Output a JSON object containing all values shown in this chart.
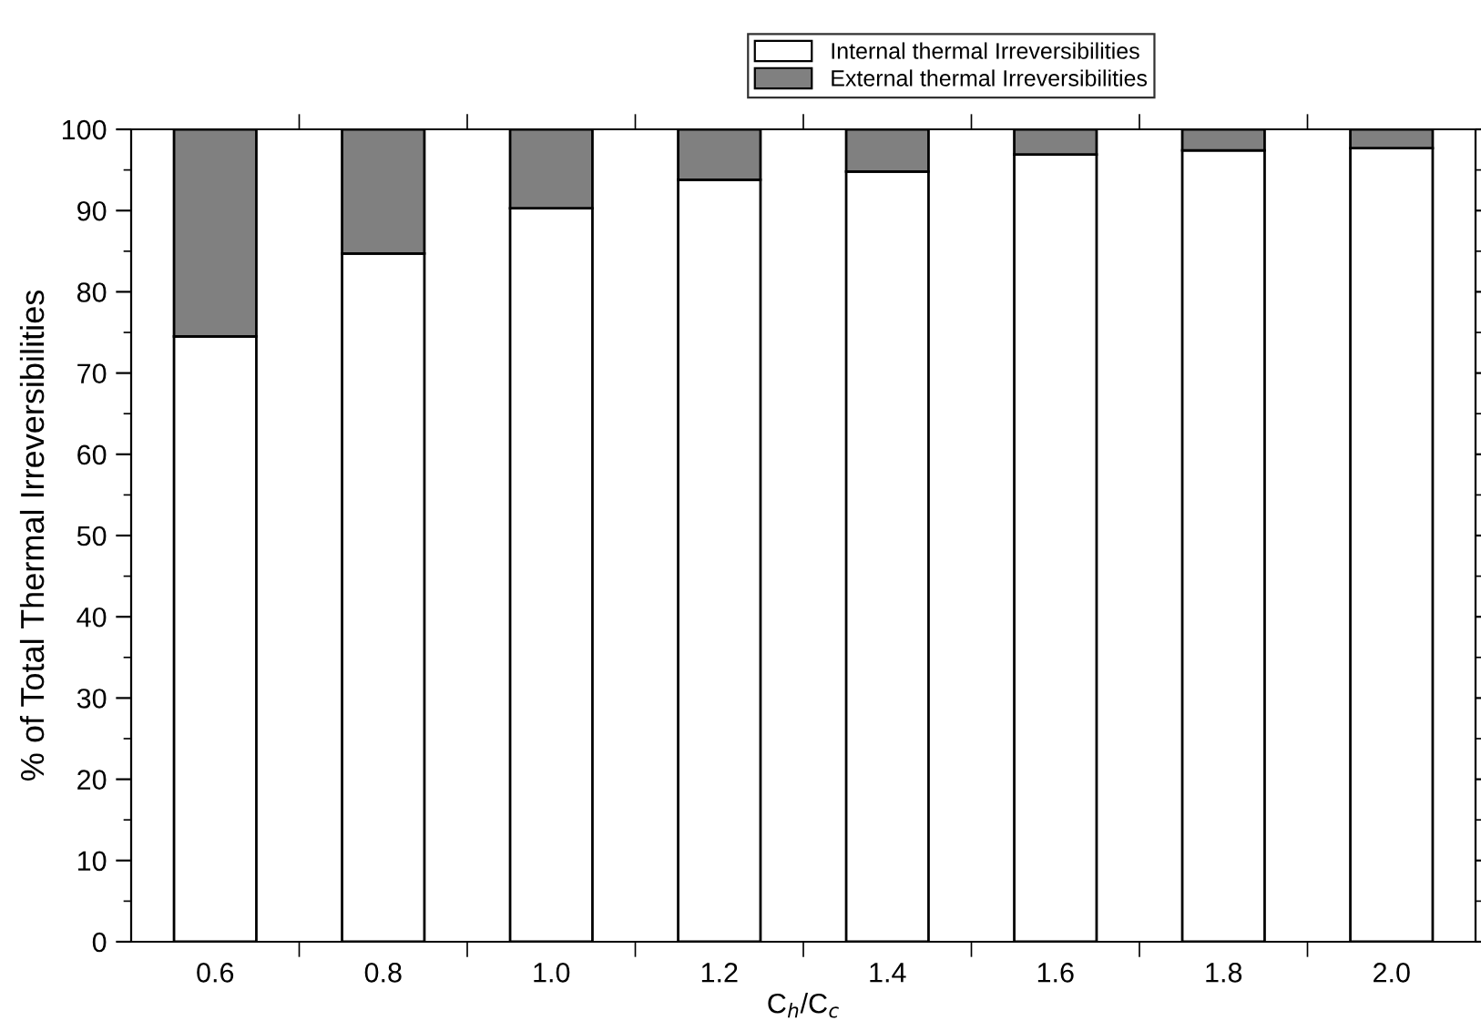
{
  "chart_data": {
    "type": "bar",
    "stacked": true,
    "xlabel": "C$_{h}$/C$_{c}$",
    "ylabel": "% of Total Thermal Irreversibilities",
    "categories": [
      "0.6",
      "0.8",
      "1.0",
      "1.2",
      "1.4",
      "1.6",
      "1.8",
      "2.0"
    ],
    "series": [
      {
        "name": "Internal thermal Irreversibilities",
        "color": "#ffffff",
        "values": [
          74.5,
          84.7,
          90.3,
          93.8,
          94.8,
          96.9,
          97.4,
          97.7
        ]
      },
      {
        "name": "External thermal Irreversibilities",
        "color": "#808080",
        "values": [
          25.5,
          15.3,
          9.7,
          6.2,
          5.2,
          3.1,
          2.6,
          2.3
        ]
      }
    ],
    "ylim": [
      0,
      100
    ],
    "yticks": [
      0,
      10,
      20,
      30,
      40,
      50,
      60,
      70,
      80,
      90,
      100
    ],
    "grid": false,
    "legend": "top"
  }
}
